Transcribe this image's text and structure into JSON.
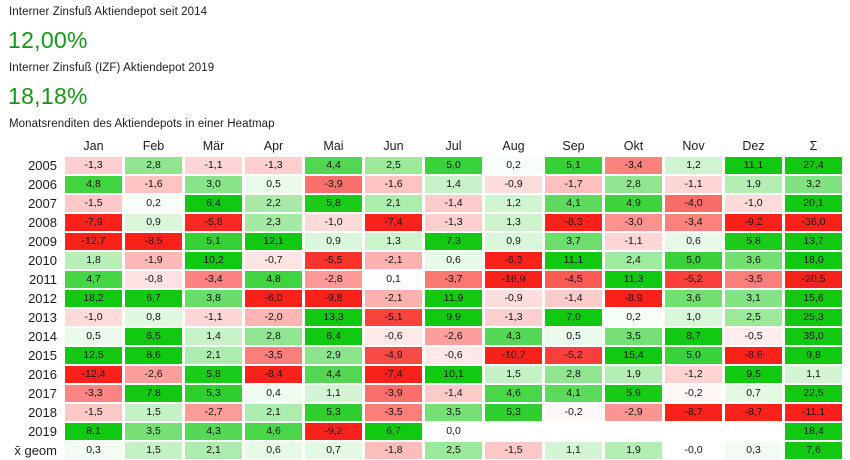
{
  "header": {
    "irr_since_2014_label": "Interner Zinsfuß Aktiendepot seit 2014",
    "irr_since_2014_value": "12,00%",
    "irr_2019_label": "Interner Zinsfuß (IZF) Aktiendepot 2019",
    "irr_2019_value": "18,18%",
    "heatmap_title": "Monatsrenditen des Aktiendepots in einer Heatmap",
    "value_color": "#169616"
  },
  "chart_data": {
    "type": "heatmap",
    "title": "Monatsrenditen des Aktiendepots in einer Heatmap",
    "columns": [
      "Jan",
      "Feb",
      "Mär",
      "Apr",
      "Mai",
      "Jun",
      "Jul",
      "Aug",
      "Sep",
      "Okt",
      "Nov",
      "Dez",
      "Σ"
    ],
    "rows": [
      {
        "label": "2005",
        "cells": [
          "-1,3",
          "2,8",
          "-1,1",
          "-1,3",
          "4,4",
          "2,5",
          "5,0",
          "0,2",
          "5,1",
          "-3,4",
          "1,2",
          "11,1",
          "27,4"
        ]
      },
      {
        "label": "2006",
        "cells": [
          "4,8",
          "-1,6",
          "3,0",
          "0,5",
          "-3,9",
          "-1,6",
          "1,4",
          "-0,9",
          "-1,7",
          "2,8",
          "-1,1",
          "1,9",
          "3,2"
        ]
      },
      {
        "label": "2007",
        "cells": [
          "-1,5",
          "0,2",
          "6,4",
          "2,2",
          "5,8",
          "2,1",
          "-1,4",
          "1,2",
          "4,1",
          "4,9",
          "-4,0",
          "-1,0",
          "20,1"
        ]
      },
      {
        "label": "2008",
        "cells": [
          "-7,9",
          "0,9",
          "-5,8",
          "2,3",
          "-1,0",
          "-7,4",
          "-1,3",
          "1,3",
          "-8,3",
          "-3,0",
          "-3,4",
          "-9,2",
          "-36,0"
        ]
      },
      {
        "label": "2009",
        "cells": [
          "-12,7",
          "-8,5",
          "5,1",
          "12,1",
          "0,9",
          "1,3",
          "7,3",
          "0,9",
          "3,7",
          "-1,1",
          "0,6",
          "5,8",
          "13,7"
        ]
      },
      {
        "label": "2010",
        "cells": [
          "1,8",
          "-1,9",
          "10,2",
          "-0,7",
          "-5,5",
          "-2,1",
          "0,6",
          "-6,3",
          "11,1",
          "2,4",
          "5,0",
          "3,6",
          "18,0"
        ]
      },
      {
        "label": "2011",
        "cells": [
          "4,7",
          "-0,8",
          "-3,4",
          "4,8",
          "-2,8",
          "0,1",
          "-3,7",
          "-16,9",
          "-4,5",
          "11,3",
          "-5,2",
          "-3,5",
          "-20,5"
        ]
      },
      {
        "label": "2012",
        "cells": [
          "18,2",
          "6,7",
          "3,8",
          "-6,0",
          "-9,8",
          "-2,1",
          "11,9",
          "-0,9",
          "-1,4",
          "-8,9",
          "3,6",
          "3,1",
          "15,6"
        ]
      },
      {
        "label": "2013",
        "cells": [
          "-1,0",
          "0,8",
          "-1,1",
          "-2,0",
          "13,3",
          "-5,1",
          "9,9",
          "-1,3",
          "7,0",
          "0,2",
          "1,0",
          "2,5",
          "25,3"
        ]
      },
      {
        "label": "2014",
        "cells": [
          "0,5",
          "6,5",
          "1,4",
          "2,8",
          "6,4",
          "-0,6",
          "-2,6",
          "4,3",
          "0,5",
          "3,5",
          "8,7",
          "-0,5",
          "35,0"
        ]
      },
      {
        "label": "2015",
        "cells": [
          "12,5",
          "8,6",
          "2,1",
          "-3,5",
          "2,9",
          "-4,9",
          "-0,6",
          "-10,7",
          "-5,2",
          "15,4",
          "5,0",
          "-8,8",
          "9,8"
        ]
      },
      {
        "label": "2016",
        "cells": [
          "-12,4",
          "-2,6",
          "5,8",
          "-8,4",
          "4,4",
          "-7,4",
          "10,1",
          "1,5",
          "2,8",
          "1,9",
          "-1,2",
          "9,5",
          "1,1"
        ]
      },
      {
        "label": "2017",
        "cells": [
          "-3,3",
          "7,8",
          "5,3",
          "0,4",
          "1,1",
          "-3,9",
          "-1,4",
          "4,6",
          "4,1",
          "5,9",
          "-0,2",
          "0,7",
          "22,5"
        ]
      },
      {
        "label": "2018",
        "cells": [
          "-1,5",
          "1,5",
          "-2,7",
          "2,1",
          "5,3",
          "-3,5",
          "3,5",
          "5,3",
          "-0,2",
          "-2,9",
          "-8,7",
          "-8,7",
          "-11,1"
        ]
      },
      {
        "label": "2019",
        "cells": [
          "8,1",
          "3,5",
          "4,3",
          "4,6",
          "-9,2",
          "6,7",
          "0,0",
          "",
          "",
          "",
          "",
          "",
          "18,4"
        ]
      },
      {
        "label": "x̄ geom",
        "cells": [
          "0,3",
          "1,5",
          "2,1",
          "0,6",
          "0,7",
          "-1,8",
          "2,5",
          "-1,5",
          "1,1",
          "1,9",
          "-0,0",
          "0,3",
          "7,6"
        ]
      }
    ],
    "color_scale": {
      "negative_full_color": "#f8221b",
      "zero_color": "#ffffff",
      "positive_full_color": "#12c912",
      "saturate_at_abs_value": 6
    },
    "layout": {
      "legend": "none",
      "grid": "white cell gaps",
      "value_format": "decimal comma, one fractional digit"
    }
  }
}
